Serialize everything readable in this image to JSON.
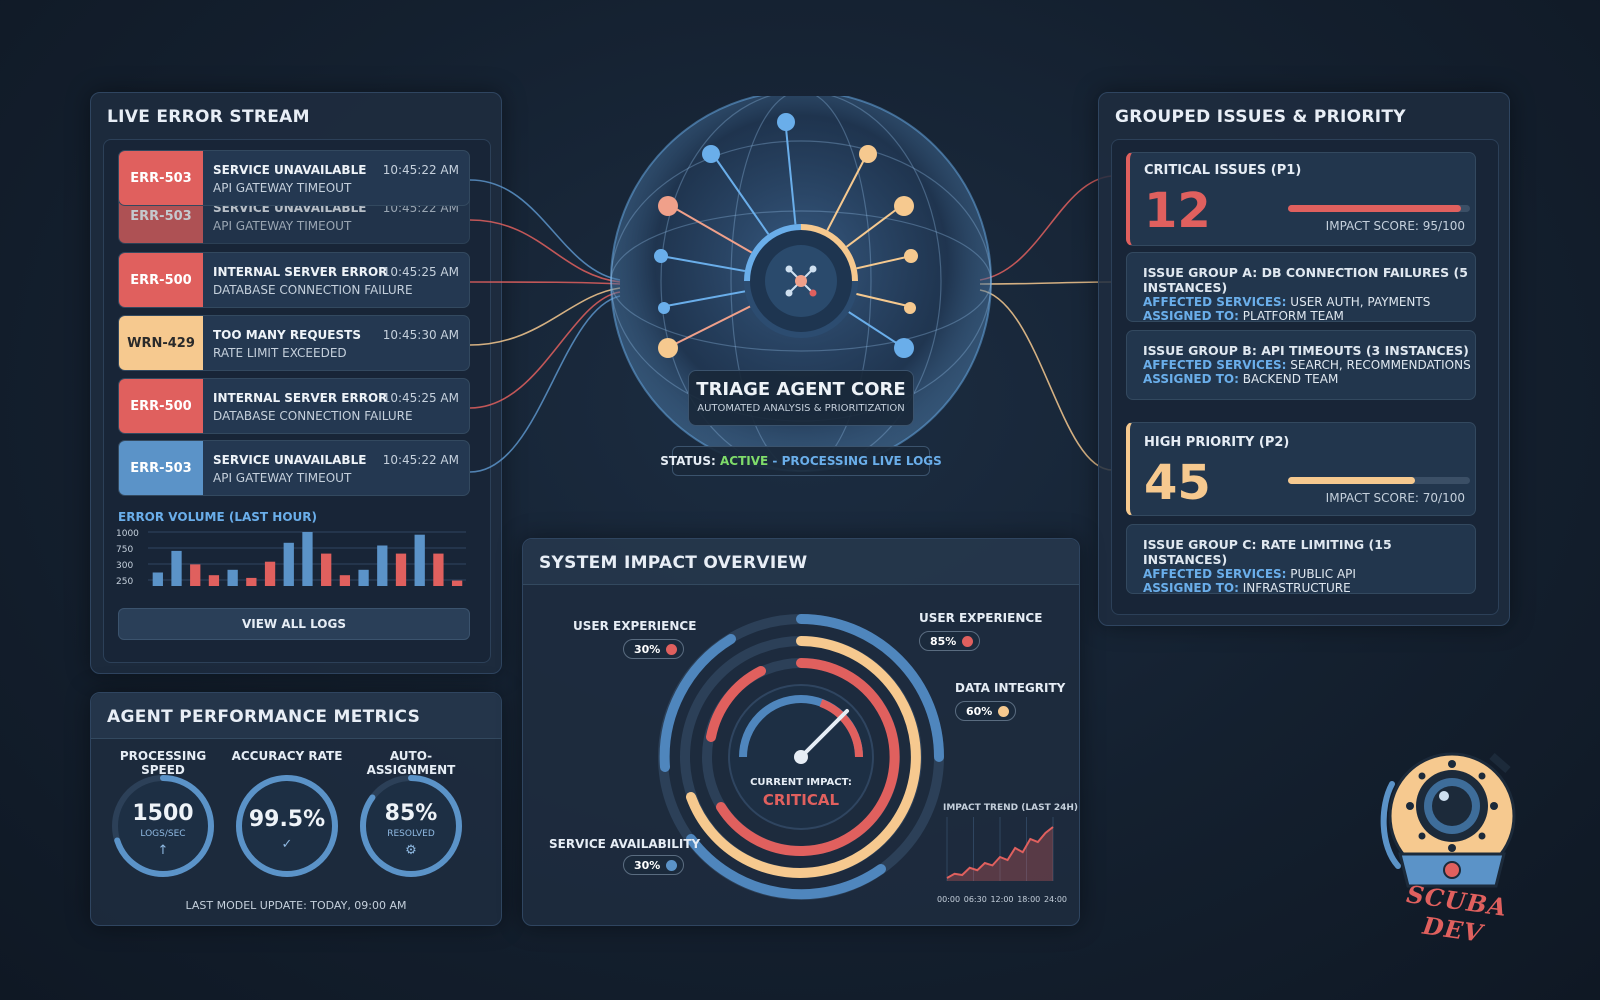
{
  "stream": {
    "title": "LIVE ERROR STREAM",
    "rows": [
      {
        "code": "ERR-503",
        "title": "SERVICE UNAVAILABLE",
        "sub": "API GATEWAY TIMEOUT",
        "time": "10:45:22 AM",
        "color": "red"
      },
      {
        "code": "ERR-503",
        "title": "SERVICE UNAVAILABLE",
        "sub": "API GATEWAY TIMEOUT",
        "time": "10:45:22 AM",
        "color": "red"
      },
      {
        "code": "ERR-500",
        "title": "INTERNAL SERVER ERROR",
        "sub": "DATABASE CONNECTION FAILURE",
        "time": "10:45:25 AM",
        "color": "red"
      },
      {
        "code": "WRN-429",
        "title": "TOO MANY REQUESTS",
        "sub": "RATE LIMIT EXCEEDED",
        "time": "10:45:30 AM",
        "color": "amber"
      },
      {
        "code": "ERR-500",
        "title": "INTERNAL SERVER ERROR",
        "sub": "DATABASE CONNECTION FAILURE",
        "time": "10:45:25 AM",
        "color": "red"
      },
      {
        "code": "ERR-503",
        "title": "SERVICE UNAVAILABLE",
        "sub": "API GATEWAY TIMEOUT",
        "time": "10:45:22 AM",
        "color": "blue"
      }
    ],
    "volume_label": "ERROR VOLUME (LAST HOUR)",
    "view_all": "VIEW ALL LOGS"
  },
  "chart_data": {
    "type": "bar",
    "title": "ERROR VOLUME (LAST HOUR)",
    "yticks": [
      "1000",
      "750",
      "300",
      "250"
    ],
    "values": [
      250,
      650,
      400,
      200,
      300,
      150,
      450,
      800,
      1000,
      600,
      200,
      300,
      750,
      600,
      950,
      600,
      100
    ],
    "colors": [
      "blue",
      "blue",
      "red",
      "red",
      "blue",
      "red",
      "red",
      "blue",
      "blue",
      "red",
      "red",
      "blue",
      "blue",
      "red",
      "blue",
      "red",
      "red"
    ]
  },
  "core": {
    "title": "TRIAGE AGENT CORE",
    "subtitle": "AUTOMATED ANALYSIS & PRIORITIZATION",
    "status_prefix": "STATUS: ",
    "status_active": "ACTIVE",
    "status_suffix": " - PROCESSING LIVE LOGS",
    "colors": {
      "active": "#7fdc6a",
      "processing": "#6aaeea"
    }
  },
  "issues": {
    "title": "GROUPED ISSUES & PRIORITY",
    "critical": {
      "label": "CRITICAL ISSUES (P1)",
      "count": "12",
      "score": "IMPACT SCORE: 95/100",
      "progress": 0.95,
      "color": "#e0605e"
    },
    "group_a": {
      "h": "ISSUE GROUP A: DB CONNECTION FAILURES (5 INSTANCES)",
      "aff_label": "AFFECTED SERVICES:",
      "aff": " USER AUTH, PAYMENTS",
      "asg_label": "ASSIGNED TO:",
      "asg": " PLATFORM TEAM"
    },
    "group_b": {
      "h": "ISSUE GROUP B: API TIMEOUTS (3 INSTANCES)",
      "aff_label": "AFFECTED SERVICES:",
      "aff": " SEARCH, RECOMMENDATIONS",
      "asg_label": "ASSIGNED TO:",
      "asg": " BACKEND TEAM"
    },
    "high": {
      "label": "HIGH PRIORITY (P2)",
      "count": "45",
      "score": "IMPACT SCORE: 70/100",
      "progress": 0.7,
      "color": "#f6c98f"
    },
    "group_c": {
      "h": "ISSUE GROUP C: RATE LIMITING (15 INSTANCES)",
      "aff_label": "AFFECTED SERVICES:",
      "aff": " PUBLIC API",
      "asg_label": "ASSIGNED TO:",
      "asg": " INFRASTRUCTURE"
    }
  },
  "metrics": {
    "title": "AGENT PERFORMANCE METRICS",
    "items": [
      {
        "name": "PROCESSING SPEED",
        "value": "1500",
        "unit": "LOGS/SEC",
        "icon": "arrow-up-icon",
        "glyph": "↑",
        "progress": 0.7
      },
      {
        "name": "ACCURACY RATE",
        "value": "99.5%",
        "unit": "",
        "icon": "check-icon",
        "glyph": "✓",
        "progress": 0.995
      },
      {
        "name": "AUTO-ASSIGNMENT",
        "value": "85%",
        "unit": "RESOLVED",
        "icon": "gear-icon",
        "glyph": "⚙",
        "progress": 0.85
      }
    ],
    "footer": "LAST MODEL UPDATE: TODAY, 09:00 AM"
  },
  "impact": {
    "title": "SYSTEM IMPACT OVERVIEW",
    "labels": {
      "ux_left": "USER EXPERIENCE",
      "ux_left_pct": "30%",
      "ux_right": "USER EXPERIENCE",
      "ux_right_pct": "85%",
      "data": "DATA INTEGRITY",
      "data_pct": "60%",
      "service": "SERVICE AVAILABILITY",
      "service_pct": "30%"
    },
    "current_label": "CURRENT IMPACT:",
    "current_value": "CRITICAL",
    "trend_title": "IMPACT TREND (LAST 24H)",
    "trend_ticks": [
      "00:00",
      "06:30",
      "12:00",
      "18:00",
      "24:00"
    ],
    "trend_values": [
      5,
      12,
      10,
      22,
      18,
      30,
      26,
      40,
      35,
      55,
      48,
      70,
      65,
      80,
      90
    ]
  },
  "brand": {
    "text": "SCUBA DEV",
    "icon": "diving-helmet-icon"
  }
}
